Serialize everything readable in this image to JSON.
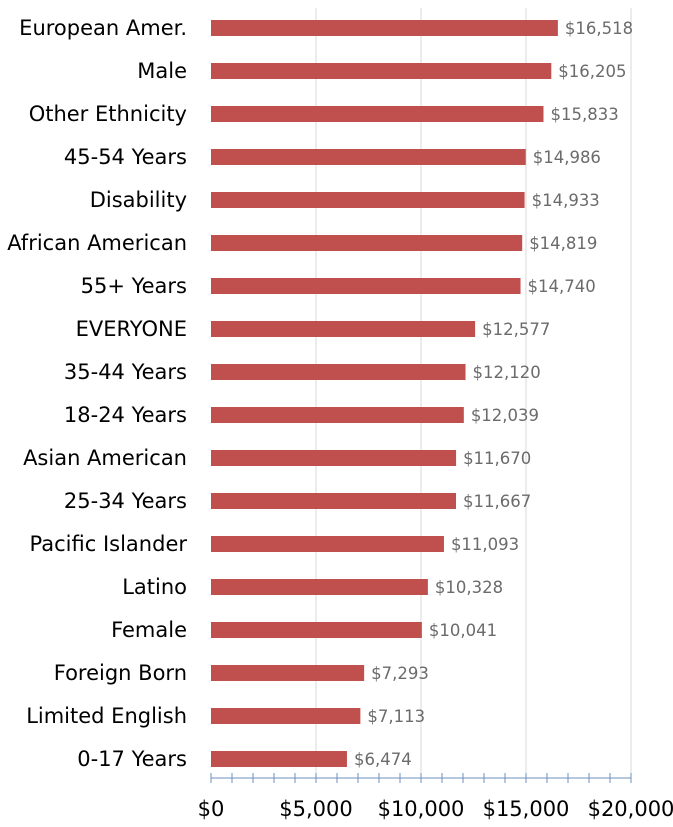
{
  "chart_data": {
    "type": "bar",
    "orientation": "horizontal",
    "title": "",
    "xlabel": "",
    "ylabel": "",
    "categories": [
      "European Amer.",
      "Male",
      "Other Ethnicity",
      "45-54 Years",
      "Disability",
      "African American",
      "55+ Years",
      "EVERYONE",
      "35-44 Years",
      "18-24 Years",
      "Asian American",
      "25-34 Years",
      "Pacific Islander",
      "Latino",
      "Female",
      "Foreign Born",
      "Limited English",
      "0-17 Years"
    ],
    "values": [
      16518,
      16205,
      15833,
      14986,
      14933,
      14819,
      14740,
      12577,
      12120,
      12039,
      11670,
      11667,
      11093,
      10328,
      10041,
      7293,
      7113,
      6474
    ],
    "value_labels": [
      "$16,518",
      "$16,205",
      "$15,833",
      "$14,986",
      "$14,933",
      "$14,819",
      "$14,740",
      "$12,577",
      "$12,120",
      "$12,039",
      "$11,670",
      "$11,667",
      "$11,093",
      "$10,328",
      "$10,041",
      "$7,293",
      "$7,113",
      "$6,474"
    ],
    "xlim": [
      0,
      20000
    ],
    "xticks": [
      0,
      5000,
      10000,
      15000,
      20000
    ],
    "xtick_labels": [
      "$0",
      "$5,000",
      "$10,000",
      "$15,000",
      "$20,000"
    ],
    "minor_tick_step": 1000,
    "grid": true,
    "legend": "none",
    "bar_color": "#c0504d",
    "value_label_color": "#6b6b6b",
    "axis_color": "#6f8fbf",
    "grid_color": "#d9d9d9"
  }
}
